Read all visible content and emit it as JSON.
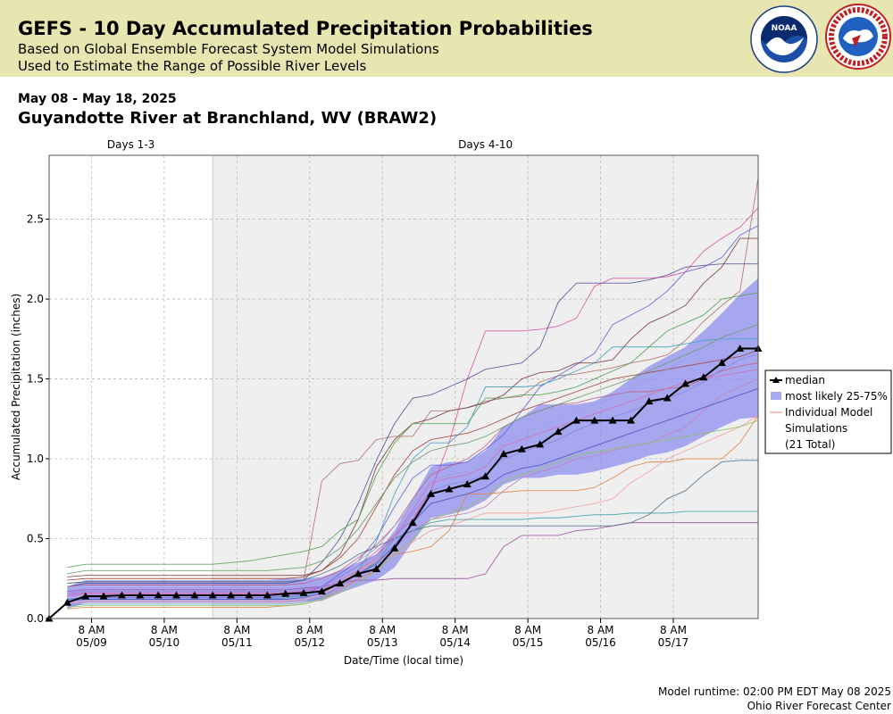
{
  "header": {
    "title": "GEFS - 10 Day Accumulated Precipitation Probabilities",
    "subtitle1": "Based on Global Ensemble Forecast System Model Simulations",
    "subtitle2": "Used to Estimate the Range of Possible River Levels",
    "date_range": "May 08 - May 18, 2025",
    "station": "Guyandotte River at Branchland, WV (BRAW2)",
    "logos": [
      "NOAA",
      "NATIONAL WEATHER SERVICE"
    ]
  },
  "footer": {
    "runtime": "Model runtime: 02:00 PM EDT May 08 2025",
    "center": "Ohio River Forecast Center"
  },
  "chart_data": {
    "type": "line",
    "period_labels": [
      "Days 1-3",
      "Days 4-10"
    ],
    "period_boundary_day": 3,
    "xlabel": "Date/Time (local time)",
    "ylabel": "Accumulated Precipitation (inches)",
    "x_unit": "days since start of May 08 2025 (EDT)",
    "xlim": [
      0.75,
      10.5
    ],
    "ylim": [
      0,
      2.9
    ],
    "yticks": [
      0.0,
      0.5,
      1.0,
      1.5,
      2.0,
      2.5
    ],
    "xticks": [
      {
        "x": 1.333,
        "line1": "8 AM",
        "line2": "05/09"
      },
      {
        "x": 2.333,
        "line1": "8 AM",
        "line2": "05/10"
      },
      {
        "x": 3.333,
        "line1": "8 AM",
        "line2": "05/11"
      },
      {
        "x": 4.333,
        "line1": "8 AM",
        "line2": "05/12"
      },
      {
        "x": 5.333,
        "line1": "8 AM",
        "line2": "05/13"
      },
      {
        "x": 6.333,
        "line1": "8 AM",
        "line2": "05/14"
      },
      {
        "x": 7.333,
        "line1": "8 AM",
        "line2": "05/15"
      },
      {
        "x": 8.333,
        "line1": "8 AM",
        "line2": "05/16"
      },
      {
        "x": 9.333,
        "line1": "8 AM",
        "line2": "05/17"
      }
    ],
    "grid": true,
    "legend_position": "right",
    "legend": [
      {
        "label": "median",
        "kind": "median"
      },
      {
        "label": "most likely 25-75%",
        "kind": "band"
      },
      {
        "label": "Individual Model",
        "kind": "member"
      },
      {
        "label": "Simulations",
        "kind": "text"
      },
      {
        "label": "(21 Total)",
        "kind": "text"
      }
    ],
    "colors": {
      "median": "#000000",
      "band": "#8f8ff0",
      "shade": "#efefef"
    },
    "x": [
      0.75,
      1.0,
      1.25,
      1.5,
      1.75,
      2.0,
      2.25,
      2.5,
      2.75,
      3.0,
      3.25,
      3.5,
      3.75,
      4.0,
      4.25,
      4.5,
      4.75,
      5.0,
      5.25,
      5.5,
      5.75,
      6.0,
      6.25,
      6.5,
      6.75,
      7.0,
      7.25,
      7.5,
      7.75,
      8.0,
      8.25,
      8.5,
      8.75,
      9.0,
      9.25,
      9.5,
      9.75,
      10.0,
      10.25,
      10.5
    ],
    "median": [
      0.0,
      0.1,
      0.14,
      0.14,
      0.145,
      0.145,
      0.145,
      0.145,
      0.145,
      0.145,
      0.145,
      0.145,
      0.145,
      0.155,
      0.16,
      0.17,
      0.22,
      0.28,
      0.31,
      0.44,
      0.6,
      0.78,
      0.81,
      0.84,
      0.89,
      1.03,
      1.06,
      1.09,
      1.17,
      1.24,
      1.24,
      1.24,
      1.24,
      1.36,
      1.38,
      1.47,
      1.51,
      1.6,
      1.69,
      1.69
    ],
    "band_p75": [
      null,
      0.2,
      0.24,
      0.24,
      0.24,
      0.24,
      0.24,
      0.24,
      0.24,
      0.24,
      0.24,
      0.24,
      0.24,
      0.25,
      0.25,
      0.26,
      0.3,
      0.35,
      0.4,
      0.55,
      0.75,
      0.95,
      0.98,
      0.98,
      1.05,
      1.2,
      1.26,
      1.34,
      1.34,
      1.34,
      1.36,
      1.42,
      1.5,
      1.58,
      1.64,
      1.7,
      1.8,
      1.91,
      2.03,
      2.13
    ],
    "band_p25": [
      null,
      0.06,
      0.1,
      0.1,
      0.1,
      0.1,
      0.1,
      0.1,
      0.1,
      0.1,
      0.1,
      0.1,
      0.1,
      0.1,
      0.11,
      0.11,
      0.16,
      0.2,
      0.24,
      0.32,
      0.48,
      0.63,
      0.65,
      0.68,
      0.74,
      0.84,
      0.88,
      0.88,
      0.9,
      0.9,
      0.92,
      0.95,
      0.98,
      1.02,
      1.04,
      1.08,
      1.14,
      1.2,
      1.25,
      1.26
    ],
    "series": [
      {
        "color": "#b07070",
        "values": [
          null,
          0.22,
          0.23,
          0.23,
          0.23,
          0.23,
          0.23,
          0.23,
          0.23,
          0.23,
          0.23,
          0.23,
          0.23,
          0.23,
          0.24,
          0.86,
          0.97,
          0.99,
          1.12,
          1.14,
          1.14,
          1.3,
          1.3,
          1.32,
          1.36,
          1.38,
          1.39,
          1.48,
          1.52,
          1.53,
          1.55,
          1.57,
          1.6,
          1.62,
          1.65,
          1.74,
          1.86,
          1.96,
          2.05,
          2.76
        ]
      },
      {
        "color": "#e050a0",
        "values": [
          null,
          0.15,
          0.16,
          0.16,
          0.16,
          0.16,
          0.16,
          0.16,
          0.16,
          0.16,
          0.16,
          0.16,
          0.16,
          0.16,
          0.17,
          0.2,
          0.26,
          0.33,
          0.42,
          0.52,
          0.62,
          0.8,
          1.1,
          1.5,
          1.8,
          1.8,
          1.8,
          1.81,
          1.83,
          1.88,
          2.08,
          2.13,
          2.13,
          2.13,
          2.14,
          2.17,
          2.3,
          2.38,
          2.45,
          2.57
        ]
      },
      {
        "color": "#6060e0",
        "values": [
          null,
          0.12,
          0.13,
          0.13,
          0.13,
          0.13,
          0.13,
          0.13,
          0.13,
          0.13,
          0.13,
          0.13,
          0.13,
          0.14,
          0.15,
          0.2,
          0.28,
          0.36,
          0.5,
          0.7,
          0.88,
          0.96,
          0.96,
          0.98,
          1.06,
          1.15,
          1.3,
          1.45,
          1.52,
          1.59,
          1.66,
          1.84,
          1.9,
          1.96,
          2.05,
          2.17,
          2.2,
          2.26,
          2.4,
          2.46
        ]
      },
      {
        "color": "#505098",
        "values": [
          null,
          0.2,
          0.22,
          0.22,
          0.22,
          0.22,
          0.22,
          0.22,
          0.22,
          0.22,
          0.22,
          0.22,
          0.22,
          0.22,
          0.24,
          0.35,
          0.5,
          0.72,
          0.99,
          1.22,
          1.38,
          1.4,
          1.45,
          1.5,
          1.56,
          1.58,
          1.6,
          1.7,
          1.98,
          2.1,
          2.1,
          2.1,
          2.1,
          2.12,
          2.15,
          2.2,
          2.21,
          2.22,
          2.22,
          2.22
        ]
      },
      {
        "color": "#7a3a3a",
        "values": [
          null,
          0.26,
          0.27,
          0.27,
          0.27,
          0.27,
          0.27,
          0.27,
          0.27,
          0.27,
          0.27,
          0.27,
          0.27,
          0.27,
          0.27,
          0.3,
          0.4,
          0.62,
          0.95,
          1.12,
          1.22,
          1.25,
          1.3,
          1.32,
          1.35,
          1.4,
          1.5,
          1.54,
          1.55,
          1.6,
          1.6,
          1.62,
          1.75,
          1.85,
          1.9,
          1.96,
          2.1,
          2.2,
          2.38,
          2.38
        ]
      },
      {
        "color": "#40a0c0",
        "values": [
          null,
          0.08,
          0.09,
          0.09,
          0.09,
          0.09,
          0.09,
          0.09,
          0.09,
          0.09,
          0.09,
          0.09,
          0.09,
          0.09,
          0.1,
          0.13,
          0.2,
          0.3,
          0.48,
          0.78,
          1.0,
          1.1,
          1.1,
          1.2,
          1.45,
          1.45,
          1.45,
          1.46,
          1.5,
          1.55,
          1.6,
          1.7,
          1.7,
          1.7,
          1.7,
          1.72,
          1.74,
          1.75,
          1.75,
          1.75
        ]
      },
      {
        "color": "#50a050",
        "values": [
          null,
          0.32,
          0.34,
          0.34,
          0.34,
          0.34,
          0.34,
          0.34,
          0.34,
          0.34,
          0.35,
          0.36,
          0.38,
          0.4,
          0.42,
          0.45,
          0.55,
          0.62,
          0.9,
          1.1,
          1.22,
          1.22,
          1.22,
          1.22,
          1.38,
          1.38,
          1.4,
          1.4,
          1.42,
          1.45,
          1.5,
          1.55,
          1.6,
          1.7,
          1.8,
          1.85,
          1.9,
          2.0,
          2.02,
          2.04
        ]
      },
      {
        "color": "#e08040",
        "values": [
          null,
          0.06,
          0.07,
          0.07,
          0.07,
          0.07,
          0.07,
          0.07,
          0.07,
          0.07,
          0.07,
          0.07,
          0.07,
          0.08,
          0.09,
          0.12,
          0.18,
          0.25,
          0.3,
          0.4,
          0.42,
          0.45,
          0.55,
          0.78,
          0.78,
          0.79,
          0.8,
          0.8,
          0.8,
          0.8,
          0.82,
          0.88,
          0.95,
          0.98,
          0.98,
          1.0,
          1.0,
          1.0,
          1.1,
          1.27
        ]
      },
      {
        "color": "#f0a0a0",
        "values": [
          null,
          0.1,
          0.11,
          0.11,
          0.11,
          0.11,
          0.11,
          0.11,
          0.11,
          0.11,
          0.11,
          0.11,
          0.11,
          0.11,
          0.12,
          0.15,
          0.22,
          0.3,
          0.36,
          0.4,
          0.48,
          0.55,
          0.58,
          0.62,
          0.66,
          0.66,
          0.66,
          0.66,
          0.68,
          0.7,
          0.72,
          0.75,
          0.85,
          0.92,
          1.0,
          1.05,
          1.1,
          1.15,
          1.2,
          1.27
        ]
      },
      {
        "color": "#a050a0",
        "values": [
          null,
          0.17,
          0.18,
          0.18,
          0.18,
          0.18,
          0.18,
          0.18,
          0.18,
          0.18,
          0.18,
          0.18,
          0.18,
          0.18,
          0.19,
          0.2,
          0.22,
          0.24,
          0.24,
          0.25,
          0.25,
          0.25,
          0.25,
          0.25,
          0.28,
          0.45,
          0.52,
          0.52,
          0.52,
          0.55,
          0.56,
          0.58,
          0.6,
          0.6,
          0.6,
          0.6,
          0.6,
          0.6,
          0.6,
          0.6
        ]
      },
      {
        "color": "#40a0a0",
        "values": [
          null,
          0.12,
          0.12,
          0.12,
          0.12,
          0.12,
          0.12,
          0.12,
          0.12,
          0.12,
          0.12,
          0.12,
          0.12,
          0.13,
          0.14,
          0.18,
          0.22,
          0.28,
          0.35,
          0.5,
          0.55,
          0.6,
          0.62,
          0.62,
          0.62,
          0.62,
          0.62,
          0.63,
          0.63,
          0.64,
          0.65,
          0.65,
          0.66,
          0.66,
          0.66,
          0.67,
          0.67,
          0.67,
          0.67,
          0.67
        ]
      },
      {
        "color": "#4a7090",
        "values": [
          null,
          0.22,
          0.23,
          0.23,
          0.23,
          0.23,
          0.23,
          0.23,
          0.23,
          0.23,
          0.23,
          0.23,
          0.23,
          0.23,
          0.24,
          0.28,
          0.33,
          0.4,
          0.45,
          0.5,
          0.55,
          0.58,
          0.58,
          0.58,
          0.58,
          0.58,
          0.58,
          0.58,
          0.58,
          0.58,
          0.58,
          0.58,
          0.6,
          0.65,
          0.75,
          0.8,
          0.9,
          0.98,
          0.99,
          0.99
        ]
      },
      {
        "color": "#c06080",
        "values": [
          null,
          0.2,
          0.21,
          0.21,
          0.21,
          0.21,
          0.21,
          0.21,
          0.21,
          0.21,
          0.21,
          0.21,
          0.21,
          0.21,
          0.22,
          0.25,
          0.3,
          0.38,
          0.46,
          0.58,
          0.75,
          0.9,
          0.95,
          1.0,
          1.08,
          1.2,
          1.26,
          1.3,
          1.34,
          1.35,
          1.38,
          1.4,
          1.42,
          1.42,
          1.44,
          1.45,
          1.5,
          1.55,
          1.58,
          1.6
        ]
      },
      {
        "color": "#c080c0",
        "values": [
          null,
          0.09,
          0.1,
          0.1,
          0.1,
          0.1,
          0.1,
          0.1,
          0.1,
          0.1,
          0.1,
          0.1,
          0.1,
          0.1,
          0.11,
          0.14,
          0.2,
          0.28,
          0.36,
          0.44,
          0.55,
          0.62,
          0.64,
          0.66,
          0.7,
          0.8,
          0.88,
          0.92,
          0.95,
          1.0,
          1.02,
          1.05,
          1.08,
          1.1,
          1.15,
          1.2,
          1.3,
          1.4,
          1.45,
          1.5
        ]
      },
      {
        "color": "#8888dd",
        "values": [
          null,
          0.16,
          0.17,
          0.17,
          0.17,
          0.17,
          0.17,
          0.17,
          0.17,
          0.17,
          0.17,
          0.17,
          0.17,
          0.17,
          0.18,
          0.2,
          0.26,
          0.33,
          0.4,
          0.5,
          0.66,
          0.8,
          0.84,
          0.86,
          0.9,
          1.0,
          1.04,
          1.08,
          1.12,
          1.18,
          1.22,
          1.26,
          1.3,
          1.34,
          1.38,
          1.42,
          1.48,
          1.56,
          1.62,
          1.66
        ]
      },
      {
        "color": "#90c060",
        "values": [
          null,
          0.07,
          0.08,
          0.08,
          0.08,
          0.08,
          0.08,
          0.08,
          0.08,
          0.08,
          0.08,
          0.08,
          0.08,
          0.08,
          0.09,
          0.12,
          0.16,
          0.22,
          0.3,
          0.4,
          0.5,
          0.62,
          0.66,
          0.7,
          0.76,
          0.86,
          0.9,
          0.94,
          0.98,
          1.02,
          1.04,
          1.06,
          1.08,
          1.1,
          1.12,
          1.14,
          1.16,
          1.18,
          1.2,
          1.24
        ]
      },
      {
        "color": "#a04040",
        "values": [
          null,
          0.24,
          0.25,
          0.25,
          0.25,
          0.25,
          0.25,
          0.25,
          0.25,
          0.25,
          0.25,
          0.25,
          0.25,
          0.25,
          0.26,
          0.3,
          0.38,
          0.5,
          0.7,
          0.9,
          1.05,
          1.12,
          1.14,
          1.16,
          1.2,
          1.25,
          1.3,
          1.34,
          1.38,
          1.42,
          1.46,
          1.5,
          1.52,
          1.54,
          1.56,
          1.58,
          1.6,
          1.62,
          1.64,
          1.68
        ]
      },
      {
        "color": "#6a9a6a",
        "values": [
          null,
          0.28,
          0.3,
          0.3,
          0.3,
          0.3,
          0.3,
          0.3,
          0.3,
          0.3,
          0.3,
          0.3,
          0.3,
          0.31,
          0.32,
          0.36,
          0.44,
          0.56,
          0.72,
          0.88,
          0.98,
          1.05,
          1.08,
          1.1,
          1.14,
          1.2,
          1.26,
          1.3,
          1.34,
          1.38,
          1.42,
          1.46,
          1.5,
          1.55,
          1.6,
          1.65,
          1.7,
          1.76,
          1.8,
          1.84
        ]
      },
      {
        "color": "#5050c0",
        "values": [
          null,
          0.11,
          0.12,
          0.12,
          0.12,
          0.12,
          0.12,
          0.12,
          0.12,
          0.12,
          0.12,
          0.12,
          0.12,
          0.12,
          0.13,
          0.16,
          0.22,
          0.28,
          0.34,
          0.46,
          0.6,
          0.72,
          0.75,
          0.78,
          0.82,
          0.9,
          0.94,
          0.96,
          1.0,
          1.04,
          1.08,
          1.12,
          1.16,
          1.2,
          1.24,
          1.28,
          1.32,
          1.36,
          1.4,
          1.44
        ]
      },
      {
        "color": "#d070b0",
        "values": [
          null,
          0.14,
          0.15,
          0.15,
          0.15,
          0.15,
          0.15,
          0.15,
          0.15,
          0.15,
          0.15,
          0.15,
          0.15,
          0.15,
          0.16,
          0.18,
          0.24,
          0.3,
          0.38,
          0.52,
          0.68,
          0.85,
          0.88,
          0.9,
          0.95,
          1.08,
          1.12,
          1.16,
          1.2,
          1.24,
          1.28,
          1.32,
          1.36,
          1.4,
          1.44,
          1.48,
          1.5,
          1.52,
          1.54,
          1.56
        ]
      },
      {
        "color": "#a0a0e8",
        "values": [
          null,
          0.18,
          0.19,
          0.19,
          0.19,
          0.19,
          0.19,
          0.19,
          0.19,
          0.19,
          0.19,
          0.19,
          0.19,
          0.19,
          0.2,
          0.23,
          0.29,
          0.36,
          0.44,
          0.58,
          0.72,
          0.86,
          0.9,
          0.92,
          0.98,
          1.1,
          1.16,
          1.2,
          1.25,
          1.3,
          1.34,
          1.38,
          1.44,
          1.5,
          1.56,
          1.62,
          1.68,
          1.74,
          1.78,
          1.82
        ]
      }
    ]
  }
}
